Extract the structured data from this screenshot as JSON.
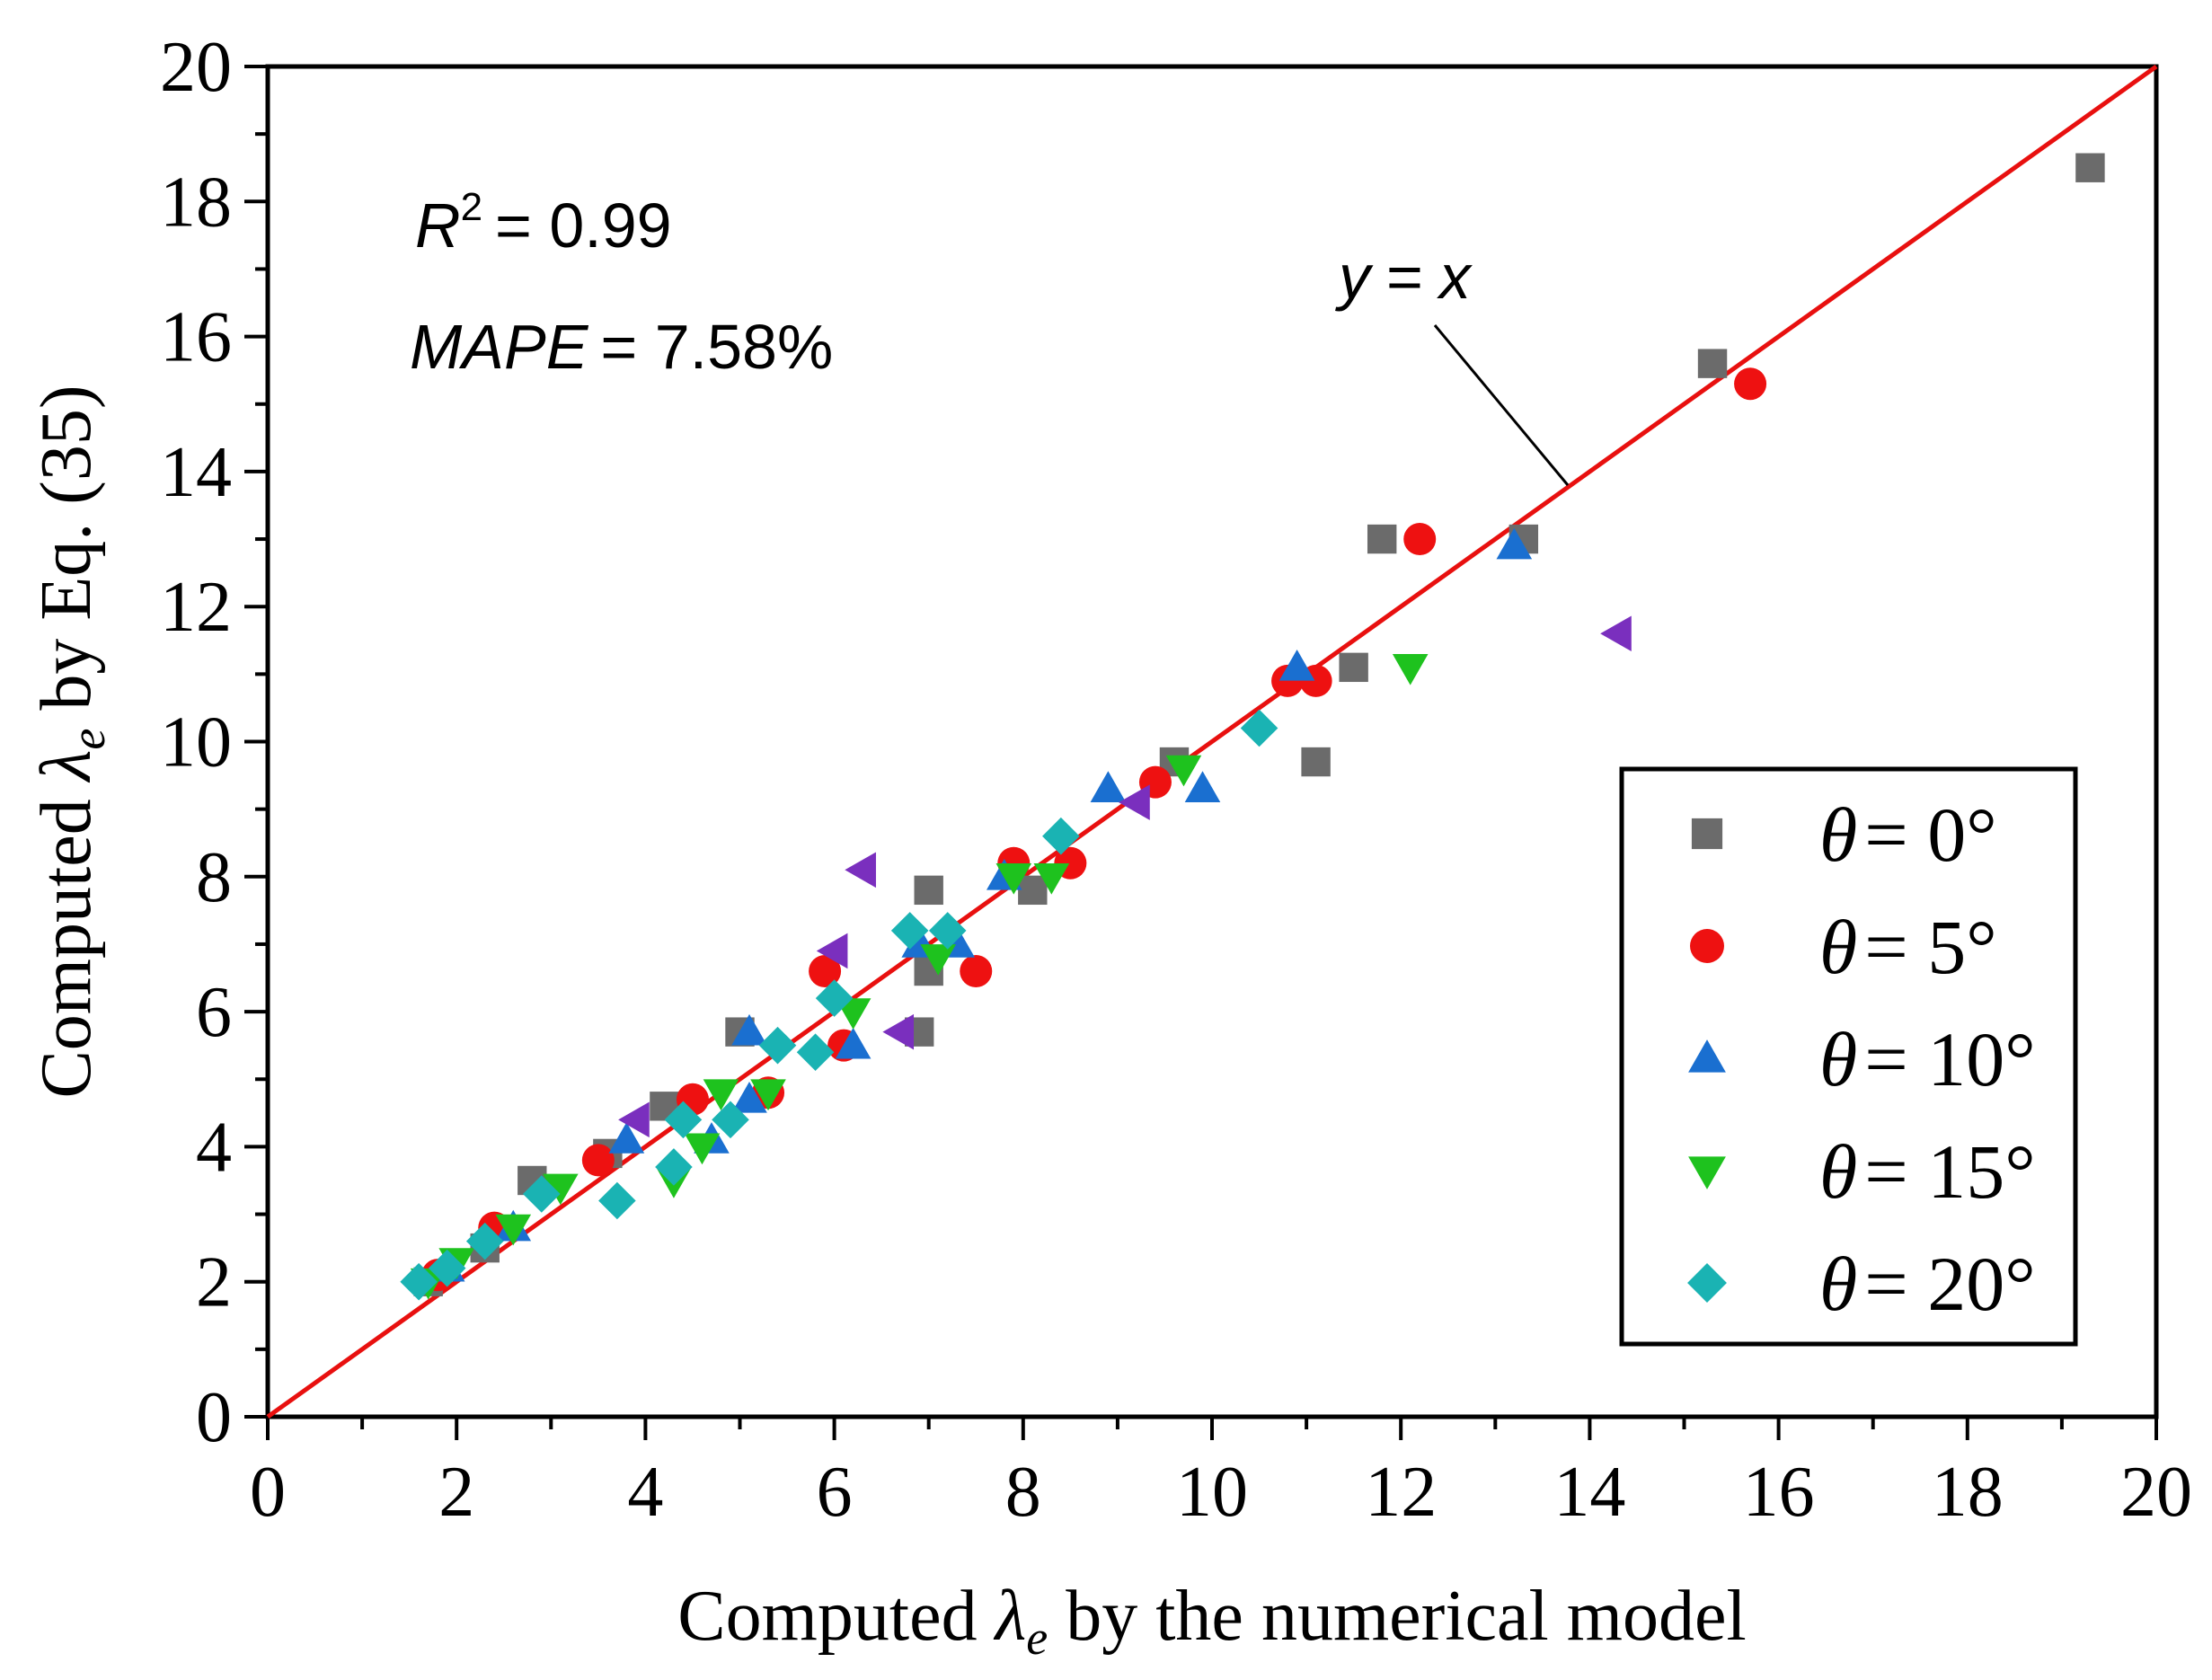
{
  "chart_data": {
    "type": "scatter",
    "title": "",
    "xlabel": {
      "prefix": "Computed ",
      "symbol": "λ",
      "subscript": "e",
      "suffix": " by the numerical model"
    },
    "ylabel": {
      "prefix": "Computed ",
      "symbol": "λ",
      "subscript": "e",
      "suffix": " by Eq. (35)"
    },
    "xlim": [
      0,
      20
    ],
    "ylim": [
      0,
      20
    ],
    "xticks": [
      0,
      2,
      4,
      6,
      8,
      10,
      12,
      14,
      16,
      18,
      20
    ],
    "yticks": [
      0,
      2,
      4,
      6,
      8,
      10,
      12,
      14,
      16,
      18,
      20
    ],
    "grid": false,
    "legend_position": "lower-right",
    "reference_line": {
      "label_var": "y",
      "label_eq": "=",
      "label_rhs": "x",
      "color": "#e8100f",
      "from": [
        0,
        0
      ],
      "to": [
        20,
        20
      ]
    },
    "annotations": {
      "r2": {
        "var": "R",
        "sup": "2",
        "rest": "= 0.99"
      },
      "mape": {
        "var": "MAPE",
        "rest": "= 7.58%"
      }
    },
    "series": [
      {
        "name": "θ = 0°",
        "legend_theta": "θ",
        "legend_rest": "= 0°",
        "marker": "square",
        "color": "#6b6b6b",
        "points": [
          [
            1.7,
            2.0
          ],
          [
            2.3,
            2.5
          ],
          [
            2.8,
            3.5
          ],
          [
            3.6,
            3.9
          ],
          [
            4.2,
            4.6
          ],
          [
            5.0,
            5.7
          ],
          [
            6.9,
            5.7
          ],
          [
            7.0,
            6.6
          ],
          [
            7.0,
            7.8
          ],
          [
            8.1,
            7.8
          ],
          [
            9.6,
            9.7
          ],
          [
            11.1,
            9.7
          ],
          [
            11.5,
            11.1
          ],
          [
            11.8,
            13.0
          ],
          [
            13.3,
            13.0
          ],
          [
            15.3,
            15.6
          ],
          [
            19.3,
            18.5
          ]
        ]
      },
      {
        "name": "θ = 5°",
        "legend_theta": "θ",
        "legend_rest": "= 5°",
        "marker": "circle",
        "color": "#ee1111",
        "points": [
          [
            1.8,
            2.1
          ],
          [
            2.4,
            2.8
          ],
          [
            3.5,
            3.8
          ],
          [
            4.5,
            4.7
          ],
          [
            5.3,
            4.8
          ],
          [
            5.9,
            6.6
          ],
          [
            6.1,
            5.5
          ],
          [
            7.5,
            6.6
          ],
          [
            7.9,
            8.2
          ],
          [
            8.5,
            8.2
          ],
          [
            9.4,
            9.4
          ],
          [
            10.8,
            10.9
          ],
          [
            11.1,
            10.9
          ],
          [
            12.2,
            13.0
          ],
          [
            15.7,
            15.3
          ]
        ]
      },
      {
        "name": "θ = 10°",
        "legend_theta": "θ",
        "legend_rest": "= 10°",
        "marker": "triangle-up",
        "color": "#1a6fd0",
        "points": [
          [
            1.9,
            2.2
          ],
          [
            2.6,
            2.8
          ],
          [
            3.8,
            4.1
          ],
          [
            4.7,
            4.1
          ],
          [
            5.1,
            4.7
          ],
          [
            5.1,
            5.7
          ],
          [
            6.2,
            5.5
          ],
          [
            6.9,
            7.0
          ],
          [
            7.3,
            7.0
          ],
          [
            7.8,
            8.0
          ],
          [
            8.9,
            9.3
          ],
          [
            9.9,
            9.3
          ],
          [
            10.9,
            11.1
          ],
          [
            13.2,
            12.9
          ]
        ]
      },
      {
        "name": "θ = 15°",
        "legend_theta": "θ",
        "legend_rest": "= 15°",
        "marker": "triangle-down",
        "color": "#1ec21e",
        "points": [
          [
            1.7,
            2.0
          ],
          [
            2.0,
            2.3
          ],
          [
            2.6,
            2.8
          ],
          [
            3.1,
            3.4
          ],
          [
            4.3,
            3.5
          ],
          [
            4.6,
            4.0
          ],
          [
            4.8,
            4.8
          ],
          [
            5.3,
            4.8
          ],
          [
            6.2,
            6.0
          ],
          [
            7.1,
            6.8
          ],
          [
            7.9,
            8.0
          ],
          [
            8.3,
            8.0
          ],
          [
            9.7,
            9.6
          ],
          [
            12.1,
            11.1
          ]
        ]
      },
      {
        "name": "θ = 20°",
        "legend_theta": "θ",
        "legend_rest": "= 20°",
        "marker": "diamond",
        "color": "#1ab3b3",
        "points": [
          [
            1.6,
            2.0
          ],
          [
            1.9,
            2.2
          ],
          [
            2.3,
            2.6
          ],
          [
            2.9,
            3.3
          ],
          [
            3.7,
            3.2
          ],
          [
            4.3,
            3.7
          ],
          [
            4.4,
            4.4
          ],
          [
            4.9,
            4.4
          ],
          [
            5.4,
            5.5
          ],
          [
            5.8,
            5.4
          ],
          [
            6.0,
            6.2
          ],
          [
            6.8,
            7.2
          ],
          [
            7.2,
            7.2
          ],
          [
            8.4,
            8.6
          ],
          [
            10.5,
            10.2
          ]
        ]
      },
      {
        "name": "purple left-pointing markers",
        "marker": "triangle-left",
        "color": "#7a2fbe",
        "in_legend": false,
        "points": [
          [
            3.9,
            4.4
          ],
          [
            6.0,
            6.9
          ],
          [
            6.3,
            8.1
          ],
          [
            6.7,
            5.7
          ],
          [
            9.2,
            9.1
          ],
          [
            14.3,
            11.6
          ]
        ]
      }
    ]
  }
}
